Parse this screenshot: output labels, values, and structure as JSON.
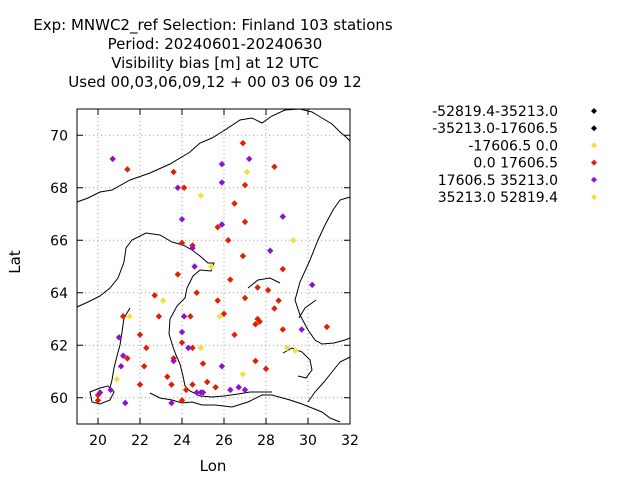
{
  "chart_data": {
    "type": "scatter",
    "title_lines": [
      "Exp: MNWC2_ref   Selection: Finland     103 stations",
      "Period: 20240601-20240630",
      "Visibility bias [m] at  12 UTC",
      "Used 00,03,06,09,12 + 00 03 06 09 12"
    ],
    "xlabel": "Lon",
    "ylabel": "Lat",
    "xlim": [
      19,
      32
    ],
    "ylim": [
      59,
      71
    ],
    "x_ticks": [
      20,
      22,
      24,
      26,
      28,
      30,
      32
    ],
    "y_ticks": [
      60,
      62,
      64,
      66,
      68,
      70
    ],
    "grid": true,
    "legend_position": "top-right outside",
    "series": [
      {
        "name": "-52819.4-35213.0",
        "color": "#000000",
        "points": []
      },
      {
        "name": "-35213.0-17606.5",
        "color": "#000000",
        "points": []
      },
      {
        "name": "-17606.5 0.0",
        "color": "#f0e040",
        "points": [
          [
            24.9,
            67.7
          ],
          [
            27.1,
            68.6
          ],
          [
            29.3,
            66.0
          ],
          [
            25.4,
            65.0
          ],
          [
            25.8,
            63.1
          ],
          [
            23.1,
            63.7
          ],
          [
            21.5,
            63.1
          ],
          [
            24.9,
            61.9
          ],
          [
            20.9,
            60.7
          ],
          [
            29.0,
            61.9
          ],
          [
            29.4,
            61.8
          ],
          [
            26.9,
            60.9
          ]
        ]
      },
      {
        "name": "0.0 17606.5",
        "color": "#e02000",
        "points": [
          [
            21.4,
            68.7
          ],
          [
            23.6,
            68.6
          ],
          [
            24.1,
            68.0
          ],
          [
            26.9,
            69.7
          ],
          [
            28.4,
            68.8
          ],
          [
            27.0,
            68.1
          ],
          [
            26.5,
            67.4
          ],
          [
            27.0,
            66.7
          ],
          [
            25.7,
            66.5
          ],
          [
            26.2,
            66.0
          ],
          [
            24.0,
            65.9
          ],
          [
            24.5,
            65.8
          ],
          [
            26.9,
            65.4
          ],
          [
            28.8,
            64.9
          ],
          [
            23.8,
            64.7
          ],
          [
            26.3,
            64.5
          ],
          [
            27.6,
            64.2
          ],
          [
            28.1,
            64.1
          ],
          [
            24.7,
            64.0
          ],
          [
            22.7,
            63.9
          ],
          [
            25.7,
            63.7
          ],
          [
            27.0,
            63.8
          ],
          [
            28.6,
            63.7
          ],
          [
            21.2,
            63.1
          ],
          [
            22.9,
            63.1
          ],
          [
            24.4,
            63.1
          ],
          [
            26.0,
            63.2
          ],
          [
            28.4,
            63.4
          ],
          [
            27.6,
            63.0
          ],
          [
            27.7,
            62.9
          ],
          [
            27.5,
            62.8
          ],
          [
            22.0,
            62.4
          ],
          [
            26.5,
            62.4
          ],
          [
            24.0,
            62.1
          ],
          [
            28.8,
            62.6
          ],
          [
            30.9,
            62.7
          ],
          [
            22.3,
            61.9
          ],
          [
            24.5,
            61.9
          ],
          [
            21.4,
            61.5
          ],
          [
            22.2,
            61.2
          ],
          [
            23.6,
            61.5
          ],
          [
            25.0,
            61.3
          ],
          [
            27.5,
            61.4
          ],
          [
            28.0,
            61.1
          ],
          [
            23.3,
            60.8
          ],
          [
            24.5,
            60.5
          ],
          [
            25.2,
            60.6
          ],
          [
            22.0,
            60.5
          ],
          [
            23.5,
            60.5
          ],
          [
            24.2,
            60.3
          ],
          [
            25.6,
            60.4
          ],
          [
            24.0,
            59.9
          ],
          [
            20.0,
            59.9
          ],
          [
            20.0,
            60.1
          ]
        ]
      },
      {
        "name": "17606.5 35213.0",
        "color": "#9010d0",
        "points": [
          [
            20.7,
            69.1
          ],
          [
            27.2,
            69.1
          ],
          [
            25.9,
            68.9
          ],
          [
            23.8,
            68.0
          ],
          [
            25.9,
            68.2
          ],
          [
            24.0,
            66.8
          ],
          [
            28.8,
            66.9
          ],
          [
            25.9,
            66.6
          ],
          [
            24.5,
            65.7
          ],
          [
            28.2,
            65.6
          ],
          [
            24.6,
            65.0
          ],
          [
            30.2,
            64.3
          ],
          [
            24.1,
            63.1
          ],
          [
            24.0,
            62.5
          ],
          [
            29.7,
            62.6
          ],
          [
            21.0,
            62.3
          ],
          [
            21.2,
            61.6
          ],
          [
            24.3,
            61.9
          ],
          [
            21.1,
            61.2
          ],
          [
            23.6,
            61.4
          ],
          [
            25.9,
            61.2
          ],
          [
            20.6,
            60.3
          ],
          [
            20.1,
            60.2
          ],
          [
            24.7,
            60.2
          ],
          [
            25.0,
            60.2
          ],
          [
            26.7,
            60.4
          ],
          [
            27.0,
            60.3
          ],
          [
            26.3,
            60.3
          ],
          [
            21.3,
            59.8
          ],
          [
            23.5,
            59.8
          ],
          [
            24.9,
            60.2
          ]
        ]
      },
      {
        "name": "35213.0 52819.4",
        "color": "#f0e040",
        "points": []
      }
    ]
  }
}
